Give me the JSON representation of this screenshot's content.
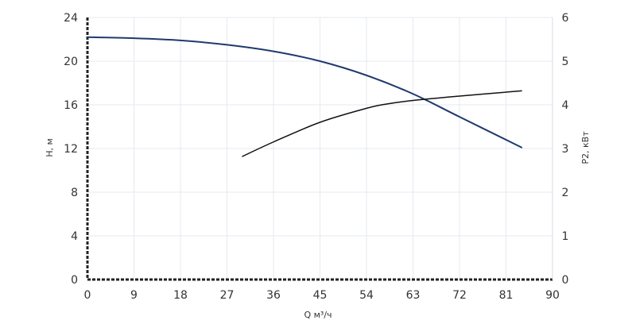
{
  "chart_data": {
    "type": "line",
    "xlabel": "Q м³/ч",
    "ylabel_left": "H, м",
    "ylabel_right": "P2, кВт",
    "x_ticks": [
      "0",
      "9",
      "18",
      "27",
      "36",
      "45",
      "54",
      "63",
      "72",
      "81",
      "90"
    ],
    "y_left_ticks": [
      "0",
      "4",
      "8",
      "12",
      "16",
      "20",
      "24"
    ],
    "y_right_ticks": [
      "0",
      "1",
      "2",
      "3",
      "4",
      "5",
      "6"
    ],
    "xlim": [
      0,
      90
    ],
    "ylim_left": [
      0,
      24
    ],
    "ylim_right": [
      0,
      6
    ],
    "grid": true,
    "series": [
      {
        "axis": "left",
        "color": "#1f3a6e",
        "x": [
          0,
          9,
          18,
          27,
          36,
          45,
          54,
          63,
          72,
          84
        ],
        "y": [
          22.2,
          22.1,
          21.9,
          21.5,
          20.9,
          20.0,
          18.7,
          17.0,
          14.9,
          12.1
        ]
      },
      {
        "axis": "right",
        "color": "#111111",
        "x": [
          30,
          36,
          45,
          54,
          58,
          63,
          72,
          84
        ],
        "y": [
          2.82,
          3.15,
          3.6,
          3.92,
          4.02,
          4.1,
          4.2,
          4.32
        ]
      }
    ]
  }
}
